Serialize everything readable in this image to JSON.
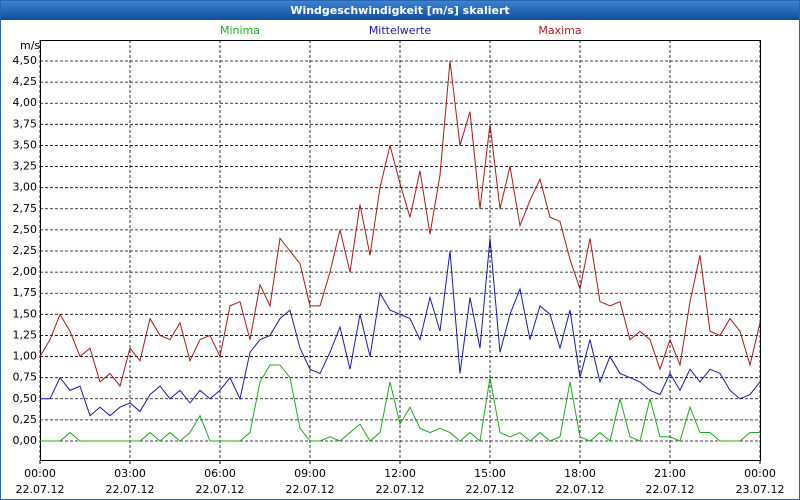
{
  "chart_data": {
    "type": "line",
    "title": "Windgeschwindigkeit [m/s] skaliert",
    "y_unit": "m/s",
    "x": [
      0,
      20,
      40,
      60,
      80,
      100,
      120,
      140,
      160,
      180,
      200,
      220,
      240,
      260,
      280,
      300,
      320,
      340,
      360,
      380,
      400,
      420,
      440,
      460,
      480,
      500,
      520,
      540,
      560,
      580,
      600,
      620,
      640,
      660,
      680,
      700,
      720,
      740,
      760,
      780,
      800,
      820,
      840,
      860,
      880,
      900,
      920,
      940,
      960,
      980,
      1000,
      1020,
      1040,
      1060,
      1080,
      1100,
      1120,
      1140,
      1160,
      1180,
      1200,
      1220,
      1240,
      1260,
      1280,
      1300,
      1320,
      1340,
      1360,
      1380,
      1400,
      1420,
      1440
    ],
    "xlim": [
      0,
      1440
    ],
    "xticks": [
      {
        "value": 0,
        "label": "00:00",
        "date": "22.07.12"
      },
      {
        "value": 180,
        "label": "03:00",
        "date": "22.07.12"
      },
      {
        "value": 360,
        "label": "06:00",
        "date": "22.07.12"
      },
      {
        "value": 540,
        "label": "09:00",
        "date": "22.07.12"
      },
      {
        "value": 720,
        "label": "12:00",
        "date": "22.07.12"
      },
      {
        "value": 900,
        "label": "15:00",
        "date": "22.07.12"
      },
      {
        "value": 1080,
        "label": "18:00",
        "date": "22.07.12"
      },
      {
        "value": 1260,
        "label": "21:00",
        "date": "22.07.12"
      },
      {
        "value": 1440,
        "label": "00:00",
        "date": "23.07.12"
      }
    ],
    "ylim": [
      0,
      4.5
    ],
    "yticks": [
      {
        "value": 0,
        "label": "0,00"
      },
      {
        "value": 0.25,
        "label": "0,25"
      },
      {
        "value": 0.5,
        "label": "0,50"
      },
      {
        "value": 0.75,
        "label": "0,75"
      },
      {
        "value": 1,
        "label": "1,00"
      },
      {
        "value": 1.25,
        "label": "1,25"
      },
      {
        "value": 1.5,
        "label": "1,50"
      },
      {
        "value": 1.75,
        "label": "1,75"
      },
      {
        "value": 2,
        "label": "2,00"
      },
      {
        "value": 2.25,
        "label": "2,25"
      },
      {
        "value": 2.5,
        "label": "2,50"
      },
      {
        "value": 2.75,
        "label": "2,75"
      },
      {
        "value": 3,
        "label": "3,00"
      },
      {
        "value": 3.25,
        "label": "3,25"
      },
      {
        "value": 3.5,
        "label": "3,50"
      },
      {
        "value": 3.75,
        "label": "3,75"
      },
      {
        "value": 4,
        "label": "4,00"
      },
      {
        "value": 4.25,
        "label": "4,25"
      },
      {
        "value": 4.5,
        "label": "4,50"
      }
    ],
    "grid": true,
    "series": [
      {
        "name": "Minima",
        "color": "#1fa81f",
        "values": [
          0,
          0,
          0,
          0.1,
          0,
          0,
          0,
          0,
          0,
          0,
          0,
          0.1,
          0,
          0.1,
          0,
          0.1,
          0.3,
          0,
          0,
          0,
          0,
          0.1,
          0.7,
          0.9,
          0.9,
          0.75,
          0.15,
          0,
          0,
          0.05,
          0,
          0.1,
          0.2,
          0,
          0.1,
          0.7,
          0.2,
          0.4,
          0.15,
          0.1,
          0.15,
          0.1,
          0,
          0.1,
          0,
          0.75,
          0.1,
          0.05,
          0.1,
          0,
          0.1,
          0,
          0.05,
          0.7,
          0.05,
          0,
          0.1,
          0,
          0.5,
          0.05,
          0,
          0.5,
          0.05,
          0.05,
          0,
          0.4,
          0.1,
          0.1,
          0,
          0,
          0,
          0.1,
          0.1
        ]
      },
      {
        "name": "Mittelwerte",
        "color": "#1a1aa8",
        "values": [
          0.5,
          0.5,
          0.75,
          0.6,
          0.65,
          0.3,
          0.4,
          0.3,
          0.4,
          0.45,
          0.35,
          0.55,
          0.65,
          0.5,
          0.6,
          0.45,
          0.6,
          0.5,
          0.6,
          0.75,
          0.5,
          1.05,
          1.2,
          1.25,
          1.45,
          1.55,
          1.1,
          0.85,
          0.8,
          1.05,
          1.35,
          0.85,
          1.5,
          1.0,
          1.75,
          1.55,
          1.5,
          1.45,
          1.2,
          1.7,
          1.3,
          2.25,
          0.8,
          1.7,
          1.1,
          2.4,
          1.05,
          1.5,
          1.8,
          1.2,
          1.6,
          1.5,
          1.1,
          1.55,
          0.75,
          1.2,
          0.7,
          1.0,
          0.8,
          0.75,
          0.7,
          0.6,
          0.55,
          0.8,
          0.6,
          0.85,
          0.7,
          0.85,
          0.8,
          0.6,
          0.5,
          0.55,
          0.7
        ]
      },
      {
        "name": "Maxima",
        "color": "#a81a1a",
        "values": [
          1.0,
          1.2,
          1.5,
          1.3,
          1.0,
          1.1,
          0.7,
          0.8,
          0.65,
          1.1,
          0.95,
          1.45,
          1.25,
          1.2,
          1.4,
          0.95,
          1.2,
          1.25,
          1.0,
          1.6,
          1.65,
          1.2,
          1.85,
          1.6,
          2.4,
          2.25,
          2.1,
          1.6,
          1.6,
          2.0,
          2.5,
          2.0,
          2.8,
          2.2,
          3.0,
          3.5,
          3.05,
          2.65,
          3.2,
          2.45,
          3.15,
          4.5,
          3.5,
          3.9,
          2.75,
          3.75,
          2.75,
          3.25,
          2.55,
          2.85,
          3.1,
          2.65,
          2.6,
          2.15,
          1.8,
          2.4,
          1.65,
          1.6,
          1.65,
          1.2,
          1.3,
          1.2,
          0.85,
          1.2,
          0.9,
          1.65,
          2.2,
          1.3,
          1.25,
          1.45,
          1.3,
          0.9,
          1.4
        ]
      }
    ]
  }
}
